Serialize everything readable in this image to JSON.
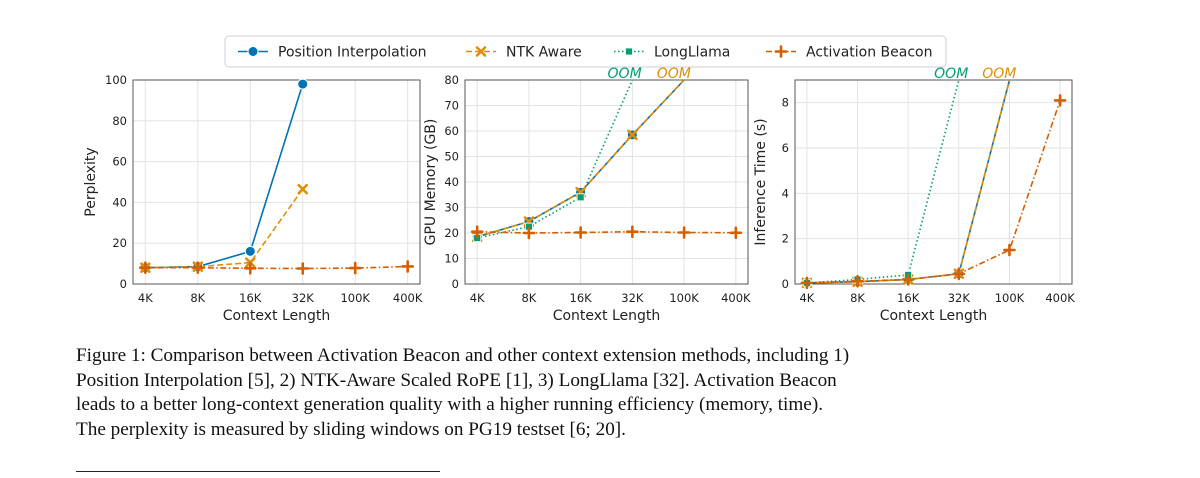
{
  "caption": {
    "lines": [
      "Figure 1: Comparison between Activation Beacon and other context extension methods, including 1)",
      "Position Interpolation [5], 2) NTK-Aware Scaled RoPE [1], 3) LongLlama [32]. Activation Beacon",
      "leads to a better long-context generation quality with a higher running efficiency (memory, time).",
      "The perplexity is measured by sliding windows on PG19 testset [6; 20]."
    ]
  },
  "legend": {
    "position": "top-center",
    "entries": [
      {
        "name": "Position Interpolation",
        "color": "#0173b2",
        "marker": "circle",
        "dash": "solid"
      },
      {
        "name": "NTK Aware",
        "color": "#de8f05",
        "marker": "x",
        "dash": "dashed"
      },
      {
        "name": "LongLlama",
        "color": "#029e73",
        "marker": "square",
        "dash": "dotted"
      },
      {
        "name": "Activation Beacon",
        "color": "#d55e00",
        "marker": "plus",
        "dash": "dashdot"
      }
    ]
  },
  "chart_data": [
    {
      "type": "line",
      "xlabel": "Context Length",
      "ylabel": "Perplexity",
      "categories": [
        "4K",
        "8K",
        "16K",
        "32K",
        "100K",
        "400K"
      ],
      "ylim": [
        0,
        100
      ],
      "yticks": [
        0,
        20,
        40,
        60,
        80,
        100
      ],
      "grid": true,
      "oom_labels": [],
      "series": [
        {
          "name": "Position Interpolation",
          "values": [
            8,
            8.5,
            16,
            98,
            null,
            null
          ]
        },
        {
          "name": "NTK Aware",
          "values": [
            8,
            8.5,
            10.5,
            46.5,
            null,
            null
          ]
        },
        {
          "name": "Activation Beacon",
          "values": [
            8,
            8,
            7.7,
            7.6,
            7.8,
            8.6
          ]
        }
      ]
    },
    {
      "type": "line",
      "xlabel": "Context Length",
      "ylabel": "GPU Memory (GB)",
      "categories": [
        "4K",
        "8K",
        "16K",
        "32K",
        "100K",
        "400K"
      ],
      "ylim": [
        0,
        80
      ],
      "yticks": [
        0,
        10,
        20,
        30,
        40,
        50,
        60,
        70,
        80
      ],
      "grid": true,
      "oom_labels": [
        {
          "text": "OOM",
          "series": "LongLlama",
          "x_index": 2.85
        },
        {
          "text": "OOM",
          "series": "NTK Aware",
          "x_index": 3.8
        }
      ],
      "series": [
        {
          "name": "Position Interpolation",
          "values": [
            18.5,
            24.5,
            36,
            58.5,
            80,
            null
          ]
        },
        {
          "name": "NTK Aware",
          "values": [
            18.5,
            24.5,
            36,
            58.5,
            80,
            null
          ]
        },
        {
          "name": "LongLlama",
          "values": [
            18,
            22.5,
            34,
            80,
            null,
            null
          ]
        },
        {
          "name": "Activation Beacon",
          "values": [
            20.5,
            20,
            20.2,
            20.5,
            20.2,
            20.1
          ]
        }
      ]
    },
    {
      "type": "line",
      "xlabel": "Context Length",
      "ylabel": "Inference Time (s)",
      "categories": [
        "4K",
        "8K",
        "16K",
        "32K",
        "100K",
        "400K"
      ],
      "ylim": [
        0,
        9
      ],
      "yticks": [
        0,
        2,
        4,
        6,
        8
      ],
      "grid": true,
      "oom_labels": [
        {
          "text": "OOM",
          "series": "LongLlama",
          "x_index": 2.85
        },
        {
          "text": "OOM",
          "series": "NTK Aware",
          "x_index": 3.8
        }
      ],
      "series": [
        {
          "name": "Position Interpolation",
          "values": [
            0.05,
            0.1,
            0.2,
            0.45,
            9,
            null
          ]
        },
        {
          "name": "NTK Aware",
          "values": [
            0.05,
            0.1,
            0.2,
            0.45,
            9,
            null
          ]
        },
        {
          "name": "LongLlama",
          "values": [
            0.05,
            0.2,
            0.4,
            9,
            null,
            null
          ]
        },
        {
          "name": "Activation Beacon",
          "values": [
            0.05,
            0.12,
            0.2,
            0.45,
            1.5,
            8.1
          ]
        }
      ]
    }
  ]
}
